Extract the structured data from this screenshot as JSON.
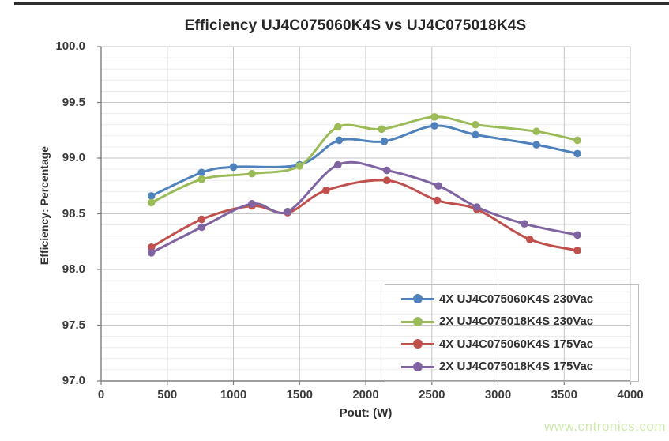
{
  "page": {
    "watermark": "www.cntronics.com"
  },
  "chart_data": {
    "type": "line",
    "title": "Efficiency UJ4C075060K4S vs UJ4C075018K4S",
    "xlabel": "Pout: (W)",
    "ylabel": "Efficiency: Percentage",
    "xlim": [
      0,
      4000
    ],
    "ylim": [
      97.0,
      100.0
    ],
    "x_ticks": [
      0,
      500,
      1000,
      1500,
      2000,
      2500,
      3000,
      3500,
      4000
    ],
    "y_ticks": [
      97.0,
      97.5,
      98.0,
      98.5,
      99.0,
      99.5,
      100.0
    ],
    "y_minor_step": 0.1,
    "grid": true,
    "legend_position": "inside-bottom-right",
    "series": [
      {
        "name": "4X UJ4C075060K4S 230Vac",
        "color": "#4F81BD",
        "x": [
          380,
          760,
          1000,
          1500,
          1800,
          2140,
          2520,
          2830,
          3290,
          3600
        ],
        "y": [
          98.66,
          98.87,
          98.92,
          98.94,
          99.16,
          99.15,
          99.29,
          99.21,
          99.12,
          99.04
        ]
      },
      {
        "name": "2X UJ4C075018K4S 230Vac",
        "color": "#9BBB59",
        "x": [
          380,
          760,
          1140,
          1500,
          1790,
          2120,
          2520,
          2830,
          3290,
          3600
        ],
        "y": [
          98.6,
          98.81,
          98.86,
          98.93,
          99.28,
          99.26,
          99.37,
          99.3,
          99.24,
          99.16
        ]
      },
      {
        "name": "4X UJ4C075060K4S 175Vac",
        "color": "#C0504D",
        "x": [
          380,
          760,
          1140,
          1410,
          1700,
          2160,
          2540,
          2840,
          3240,
          3600
        ],
        "y": [
          98.2,
          98.45,
          98.57,
          98.51,
          98.71,
          98.8,
          98.62,
          98.54,
          98.27,
          98.17
        ]
      },
      {
        "name": "2X UJ4C075018K4S 175Vac",
        "color": "#8064A2",
        "x": [
          380,
          760,
          1140,
          1410,
          1790,
          2160,
          2550,
          2840,
          3200,
          3600
        ],
        "y": [
          98.15,
          98.38,
          98.59,
          98.52,
          98.94,
          98.89,
          98.75,
          98.56,
          98.41,
          98.31
        ]
      }
    ]
  }
}
